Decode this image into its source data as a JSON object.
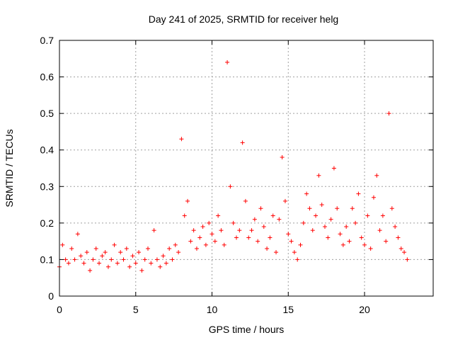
{
  "chart_data": {
    "type": "scatter",
    "title": "Day 241 of 2025, SRMTID for receiver helg",
    "xlabel": "GPS time / hours",
    "ylabel": "SRMTID / TECUs",
    "xlim": [
      0,
      24.5
    ],
    "ylim": [
      0,
      0.7
    ],
    "xticks": [
      0,
      5,
      10,
      15,
      20
    ],
    "xtick_labels": [
      "0",
      "5",
      "10",
      "15",
      "20"
    ],
    "yticks": [
      0,
      0.1,
      0.2,
      0.3,
      0.4,
      0.5,
      0.6,
      0.7
    ],
    "ytick_labels": [
      "0",
      "0.1",
      "0.2",
      "0.3",
      "0.4",
      "0.5",
      "0.6",
      "0.7"
    ],
    "grid": true,
    "marker": "+",
    "color": "#ff0000",
    "series": [
      {
        "name": "SRMTID",
        "x": [
          0.0,
          0.2,
          0.4,
          0.6,
          0.8,
          1.0,
          1.2,
          1.4,
          1.6,
          1.8,
          2.0,
          2.2,
          2.4,
          2.6,
          2.8,
          3.0,
          3.2,
          3.4,
          3.6,
          3.8,
          4.0,
          4.2,
          4.4,
          4.6,
          4.8,
          5.0,
          5.2,
          5.4,
          5.6,
          5.8,
          6.0,
          6.2,
          6.4,
          6.6,
          6.8,
          7.0,
          7.2,
          7.4,
          7.6,
          7.8,
          8.0,
          8.2,
          8.4,
          8.6,
          8.8,
          9.0,
          9.2,
          9.4,
          9.6,
          9.8,
          10.0,
          10.2,
          10.4,
          10.6,
          10.8,
          11.0,
          11.2,
          11.4,
          11.6,
          11.8,
          12.0,
          12.2,
          12.4,
          12.6,
          12.8,
          13.0,
          13.2,
          13.4,
          13.6,
          13.8,
          14.0,
          14.2,
          14.4,
          14.6,
          14.8,
          15.0,
          15.2,
          15.4,
          15.6,
          15.8,
          16.0,
          16.2,
          16.4,
          16.6,
          16.8,
          17.0,
          17.2,
          17.4,
          17.6,
          17.8,
          18.0,
          18.2,
          18.4,
          18.6,
          18.8,
          19.0,
          19.2,
          19.4,
          19.6,
          19.8,
          20.0,
          20.2,
          20.4,
          20.6,
          20.8,
          21.0,
          21.2,
          21.4,
          21.6,
          21.8,
          22.0,
          22.2,
          22.4,
          22.6,
          22.8
        ],
        "y": [
          0.08,
          0.14,
          0.1,
          0.09,
          0.13,
          0.1,
          0.17,
          0.11,
          0.09,
          0.12,
          0.07,
          0.1,
          0.13,
          0.09,
          0.11,
          0.12,
          0.08,
          0.1,
          0.14,
          0.09,
          0.12,
          0.1,
          0.13,
          0.08,
          0.11,
          0.09,
          0.12,
          0.07,
          0.1,
          0.13,
          0.09,
          0.18,
          0.1,
          0.08,
          0.11,
          0.09,
          0.13,
          0.1,
          0.14,
          0.12,
          0.43,
          0.22,
          0.26,
          0.15,
          0.18,
          0.13,
          0.16,
          0.19,
          0.14,
          0.2,
          0.17,
          0.15,
          0.22,
          0.18,
          0.14,
          0.64,
          0.3,
          0.2,
          0.16,
          0.18,
          0.42,
          0.26,
          0.16,
          0.18,
          0.21,
          0.15,
          0.24,
          0.19,
          0.13,
          0.16,
          0.22,
          0.12,
          0.21,
          0.38,
          0.26,
          0.17,
          0.15,
          0.12,
          0.1,
          0.14,
          0.2,
          0.28,
          0.24,
          0.18,
          0.22,
          0.33,
          0.25,
          0.19,
          0.16,
          0.21,
          0.35,
          0.24,
          0.17,
          0.14,
          0.19,
          0.15,
          0.24,
          0.2,
          0.28,
          0.16,
          0.14,
          0.22,
          0.13,
          0.27,
          0.33,
          0.18,
          0.22,
          0.15,
          0.5,
          0.24,
          0.19,
          0.16,
          0.13,
          0.12,
          0.1
        ]
      }
    ]
  }
}
